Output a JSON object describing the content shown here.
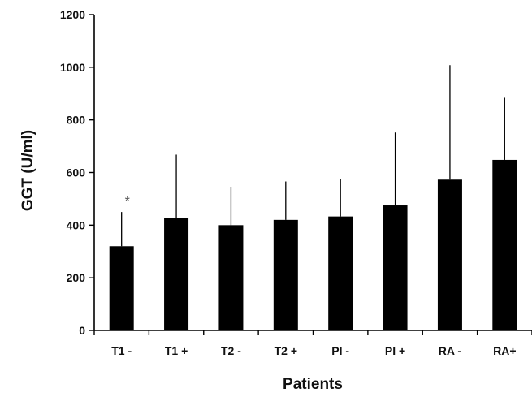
{
  "chart_data": {
    "type": "bar",
    "title": "",
    "xlabel": "Patients",
    "ylabel": "GGT (U/ml)",
    "ylim": [
      0,
      1200
    ],
    "yticks": [
      0,
      200,
      400,
      600,
      800,
      1000,
      1200
    ],
    "grid": false,
    "categories": [
      "T1 -",
      "T1 +",
      "T2 -",
      "T2 +",
      "PI -",
      "PI +",
      "RA -",
      "RA+"
    ],
    "series": [
      {
        "values": [
          320,
          428,
          400,
          420,
          433,
          475,
          573,
          648
        ],
        "error_upper": [
          450,
          668,
          546,
          566,
          576,
          752,
          1008,
          884
        ]
      }
    ],
    "annotations": [
      {
        "category": "T1 -",
        "text": "*"
      }
    ]
  }
}
